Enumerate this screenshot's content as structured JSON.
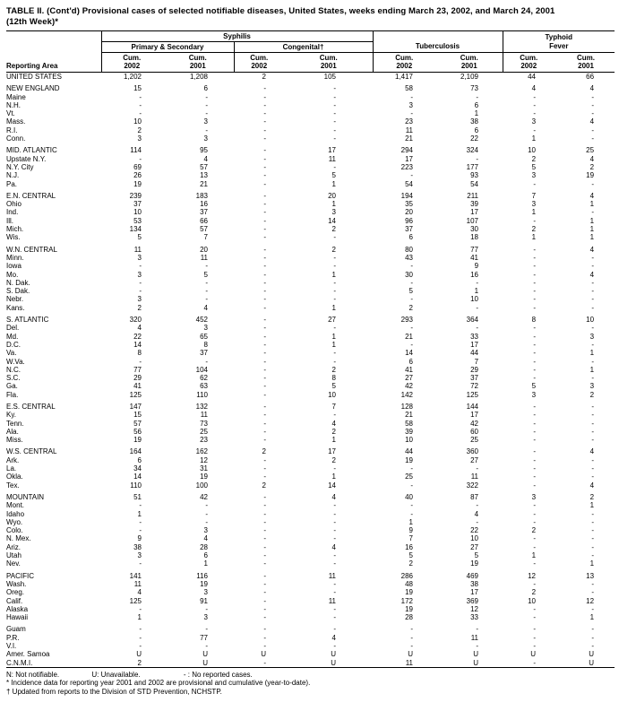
{
  "title": {
    "line1": "TABLE II. (Cont'd) Provisional cases of selected notifiable diseases, United States, weeks ending March 23, 2002, and March 24, 2001",
    "line2": "(12th Week)*"
  },
  "header": {
    "reporting_area": "Reporting Area",
    "syphilis": "Syphilis",
    "primary_secondary": "Primary & Secondary",
    "congenital": "Congenital†",
    "tuberculosis": "Tuberculosis",
    "typhoid_fever": "Typhoid\nFever",
    "cum_headers": [
      "Cum.\n2002",
      "Cum.\n2001",
      "Cum.\n2002",
      "Cum.\n2001",
      "Cum.\n2002",
      "Cum.\n2001",
      "Cum.\n2002",
      "Cum.\n2001"
    ]
  },
  "rows": [
    {
      "type": "total",
      "area": "UNITED STATES",
      "values": [
        "1,202",
        "1,208",
        "2",
        "105",
        "1,417",
        "2,109",
        "44",
        "66"
      ]
    },
    {
      "type": "spacer"
    },
    {
      "type": "region",
      "area": "NEW ENGLAND",
      "values": [
        "15",
        "6",
        "-",
        "-",
        "58",
        "73",
        "4",
        "4"
      ]
    },
    {
      "type": "state",
      "area": "Maine",
      "values": [
        "-",
        "-",
        "-",
        "-",
        "-",
        "-",
        "-",
        "-"
      ]
    },
    {
      "type": "state",
      "area": "N.H.",
      "values": [
        "-",
        "-",
        "-",
        "-",
        "3",
        "6",
        "-",
        "-"
      ]
    },
    {
      "type": "state",
      "area": "Vt.",
      "values": [
        "-",
        "-",
        "-",
        "-",
        "-",
        "1",
        "-",
        "-"
      ]
    },
    {
      "type": "state",
      "area": "Mass.",
      "values": [
        "10",
        "3",
        "-",
        "-",
        "23",
        "38",
        "3",
        "4"
      ]
    },
    {
      "type": "state",
      "area": "R.I.",
      "values": [
        "2",
        "-",
        "-",
        "-",
        "11",
        "6",
        "-",
        "-"
      ]
    },
    {
      "type": "state",
      "area": "Conn.",
      "values": [
        "3",
        "3",
        "-",
        "-",
        "21",
        "22",
        "1",
        "-"
      ]
    },
    {
      "type": "spacer"
    },
    {
      "type": "region",
      "area": "MID. ATLANTIC",
      "values": [
        "114",
        "95",
        "-",
        "17",
        "294",
        "324",
        "10",
        "25"
      ]
    },
    {
      "type": "state",
      "area": "Upstate N.Y.",
      "values": [
        "-",
        "4",
        "-",
        "11",
        "17",
        "-",
        "2",
        "4"
      ]
    },
    {
      "type": "state",
      "area": "N.Y. City",
      "values": [
        "69",
        "57",
        "-",
        "-",
        "223",
        "177",
        "5",
        "2"
      ]
    },
    {
      "type": "state",
      "area": "N.J.",
      "values": [
        "26",
        "13",
        "-",
        "5",
        "-",
        "93",
        "3",
        "19"
      ]
    },
    {
      "type": "state",
      "area": "Pa.",
      "values": [
        "19",
        "21",
        "-",
        "1",
        "54",
        "54",
        "-",
        "-"
      ]
    },
    {
      "type": "spacer"
    },
    {
      "type": "region",
      "area": "E.N. CENTRAL",
      "values": [
        "239",
        "183",
        "-",
        "20",
        "194",
        "211",
        "7",
        "4"
      ]
    },
    {
      "type": "state",
      "area": "Ohio",
      "values": [
        "37",
        "16",
        "-",
        "1",
        "35",
        "39",
        "3",
        "1"
      ]
    },
    {
      "type": "state",
      "area": "Ind.",
      "values": [
        "10",
        "37",
        "-",
        "3",
        "20",
        "17",
        "1",
        "-"
      ]
    },
    {
      "type": "state",
      "area": "Ill.",
      "values": [
        "53",
        "66",
        "-",
        "14",
        "96",
        "107",
        "-",
        "1"
      ]
    },
    {
      "type": "state",
      "area": "Mich.",
      "values": [
        "134",
        "57",
        "-",
        "2",
        "37",
        "30",
        "2",
        "1"
      ]
    },
    {
      "type": "state",
      "area": "Wis.",
      "values": [
        "5",
        "7",
        "-",
        "-",
        "6",
        "18",
        "1",
        "1"
      ]
    },
    {
      "type": "spacer"
    },
    {
      "type": "region",
      "area": "W.N. CENTRAL",
      "values": [
        "11",
        "20",
        "-",
        "2",
        "80",
        "77",
        "-",
        "4"
      ]
    },
    {
      "type": "state",
      "area": "Minn.",
      "values": [
        "3",
        "11",
        "-",
        "-",
        "43",
        "41",
        "-",
        "-"
      ]
    },
    {
      "type": "state",
      "area": "Iowa",
      "values": [
        "-",
        "-",
        "-",
        "-",
        "-",
        "9",
        "-",
        "-"
      ]
    },
    {
      "type": "state",
      "area": "Mo.",
      "values": [
        "3",
        "5",
        "-",
        "1",
        "30",
        "16",
        "-",
        "4"
      ]
    },
    {
      "type": "state",
      "area": "N. Dak.",
      "values": [
        "-",
        "-",
        "-",
        "-",
        "-",
        "-",
        "-",
        "-"
      ]
    },
    {
      "type": "state",
      "area": "S. Dak.",
      "values": [
        "-",
        "-",
        "-",
        "-",
        "5",
        "1",
        "-",
        "-"
      ]
    },
    {
      "type": "state",
      "area": "Nebr.",
      "values": [
        "3",
        "-",
        "-",
        "-",
        "-",
        "10",
        "-",
        "-"
      ]
    },
    {
      "type": "state",
      "area": "Kans.",
      "values": [
        "2",
        "4",
        "-",
        "1",
        "2",
        "-",
        "-",
        "-"
      ]
    },
    {
      "type": "spacer"
    },
    {
      "type": "region",
      "area": "S. ATLANTIC",
      "values": [
        "320",
        "452",
        "-",
        "27",
        "293",
        "364",
        "8",
        "10"
      ]
    },
    {
      "type": "state",
      "area": "Del.",
      "values": [
        "4",
        "3",
        "-",
        "-",
        "-",
        "-",
        "-",
        "-"
      ]
    },
    {
      "type": "state",
      "area": "Md.",
      "values": [
        "22",
        "65",
        "-",
        "1",
        "21",
        "33",
        "-",
        "3"
      ]
    },
    {
      "type": "state",
      "area": "D.C.",
      "values": [
        "14",
        "8",
        "-",
        "1",
        "-",
        "17",
        "-",
        "-"
      ]
    },
    {
      "type": "state",
      "area": "Va.",
      "values": [
        "8",
        "37",
        "-",
        "-",
        "14",
        "44",
        "-",
        "1"
      ]
    },
    {
      "type": "state",
      "area": "W.Va.",
      "values": [
        "-",
        "-",
        "-",
        "-",
        "6",
        "7",
        "-",
        "-"
      ]
    },
    {
      "type": "state",
      "area": "N.C.",
      "values": [
        "77",
        "104",
        "-",
        "2",
        "41",
        "29",
        "-",
        "1"
      ]
    },
    {
      "type": "state",
      "area": "S.C.",
      "values": [
        "29",
        "62",
        "-",
        "8",
        "27",
        "37",
        "-",
        "-"
      ]
    },
    {
      "type": "state",
      "area": "Ga.",
      "values": [
        "41",
        "63",
        "-",
        "5",
        "42",
        "72",
        "5",
        "3"
      ]
    },
    {
      "type": "state",
      "area": "Fla.",
      "values": [
        "125",
        "110",
        "-",
        "10",
        "142",
        "125",
        "3",
        "2"
      ]
    },
    {
      "type": "spacer"
    },
    {
      "type": "region",
      "area": "E.S. CENTRAL",
      "values": [
        "147",
        "132",
        "-",
        "7",
        "128",
        "144",
        "-",
        "-"
      ]
    },
    {
      "type": "state",
      "area": "Ky.",
      "values": [
        "15",
        "11",
        "-",
        "-",
        "21",
        "17",
        "-",
        "-"
      ]
    },
    {
      "type": "state",
      "area": "Tenn.",
      "values": [
        "57",
        "73",
        "-",
        "4",
        "58",
        "42",
        "-",
        "-"
      ]
    },
    {
      "type": "state",
      "area": "Ala.",
      "values": [
        "56",
        "25",
        "-",
        "2",
        "39",
        "60",
        "-",
        "-"
      ]
    },
    {
      "type": "state",
      "area": "Miss.",
      "values": [
        "19",
        "23",
        "-",
        "1",
        "10",
        "25",
        "-",
        "-"
      ]
    },
    {
      "type": "spacer"
    },
    {
      "type": "region",
      "area": "W.S. CENTRAL",
      "values": [
        "164",
        "162",
        "2",
        "17",
        "44",
        "360",
        "-",
        "4"
      ]
    },
    {
      "type": "state",
      "area": "Ark.",
      "values": [
        "6",
        "12",
        "-",
        "2",
        "19",
        "27",
        "-",
        "-"
      ]
    },
    {
      "type": "state",
      "area": "La.",
      "values": [
        "34",
        "31",
        "-",
        "-",
        "-",
        "-",
        "-",
        "-"
      ]
    },
    {
      "type": "state",
      "area": "Okla.",
      "values": [
        "14",
        "19",
        "-",
        "1",
        "25",
        "11",
        "-",
        "-"
      ]
    },
    {
      "type": "state",
      "area": "Tex.",
      "values": [
        "110",
        "100",
        "2",
        "14",
        "-",
        "322",
        "-",
        "4"
      ]
    },
    {
      "type": "spacer"
    },
    {
      "type": "region",
      "area": "MOUNTAIN",
      "values": [
        "51",
        "42",
        "-",
        "4",
        "40",
        "87",
        "3",
        "2"
      ]
    },
    {
      "type": "state",
      "area": "Mont.",
      "values": [
        "-",
        "-",
        "-",
        "-",
        "-",
        "-",
        "-",
        "1"
      ]
    },
    {
      "type": "state",
      "area": "Idaho",
      "values": [
        "1",
        "-",
        "-",
        "-",
        "-",
        "4",
        "-",
        "-"
      ]
    },
    {
      "type": "state",
      "area": "Wyo.",
      "values": [
        "-",
        "-",
        "-",
        "-",
        "1",
        "-",
        "-",
        "-"
      ]
    },
    {
      "type": "state",
      "area": "Colo.",
      "values": [
        "-",
        "3",
        "-",
        "-",
        "9",
        "22",
        "2",
        "-"
      ]
    },
    {
      "type": "state",
      "area": "N. Mex.",
      "values": [
        "9",
        "4",
        "-",
        "-",
        "7",
        "10",
        "-",
        "-"
      ]
    },
    {
      "type": "state",
      "area": "Ariz.",
      "values": [
        "38",
        "28",
        "-",
        "4",
        "16",
        "27",
        "-",
        "-"
      ]
    },
    {
      "type": "state",
      "area": "Utah",
      "values": [
        "3",
        "6",
        "-",
        "-",
        "5",
        "5",
        "1",
        "-"
      ]
    },
    {
      "type": "state",
      "area": "Nev.",
      "values": [
        "-",
        "1",
        "-",
        "-",
        "2",
        "19",
        "-",
        "1"
      ]
    },
    {
      "type": "spacer"
    },
    {
      "type": "region",
      "area": "PACIFIC",
      "values": [
        "141",
        "116",
        "-",
        "11",
        "286",
        "469",
        "12",
        "13"
      ]
    },
    {
      "type": "state",
      "area": "Wash.",
      "values": [
        "11",
        "19",
        "-",
        "-",
        "48",
        "38",
        "-",
        "-"
      ]
    },
    {
      "type": "state",
      "area": "Oreg.",
      "values": [
        "4",
        "3",
        "-",
        "-",
        "19",
        "17",
        "2",
        "-"
      ]
    },
    {
      "type": "state",
      "area": "Calif.",
      "values": [
        "125",
        "91",
        "-",
        "11",
        "172",
        "369",
        "10",
        "12"
      ]
    },
    {
      "type": "state",
      "area": "Alaska",
      "values": [
        "-",
        "-",
        "-",
        "-",
        "19",
        "12",
        "-",
        "-"
      ]
    },
    {
      "type": "state",
      "area": "Hawaii",
      "values": [
        "1",
        "3",
        "-",
        "-",
        "28",
        "33",
        "-",
        "1"
      ]
    },
    {
      "type": "spacer"
    },
    {
      "type": "territory",
      "area": "Guam",
      "values": [
        "-",
        "-",
        "-",
        "-",
        "-",
        "-",
        "-",
        "-"
      ]
    },
    {
      "type": "territory",
      "area": "P.R.",
      "values": [
        "-",
        "77",
        "-",
        "4",
        "-",
        "11",
        "-",
        "-"
      ]
    },
    {
      "type": "territory",
      "area": "V.I.",
      "values": [
        "-",
        "-",
        "-",
        "-",
        "-",
        "-",
        "-",
        "-"
      ]
    },
    {
      "type": "territory",
      "area": "Amer. Samoa",
      "values": [
        "U",
        "U",
        "U",
        "U",
        "U",
        "U",
        "U",
        "U"
      ]
    },
    {
      "type": "territory",
      "area": "C.N.M.I.",
      "values": [
        "2",
        "U",
        "-",
        "U",
        "11",
        "U",
        "-",
        "U"
      ]
    }
  ],
  "footnotes": {
    "legend": [
      "N: Not notifiable.",
      "U: Unavailable.",
      "- : No reported cases."
    ],
    "star": "* Incidence data for reporting year 2001 and 2002 are provisional and cumulative (year-to-date).",
    "dagger": "† Updated from reports to the Division of STD Prevention, NCHSTP."
  }
}
